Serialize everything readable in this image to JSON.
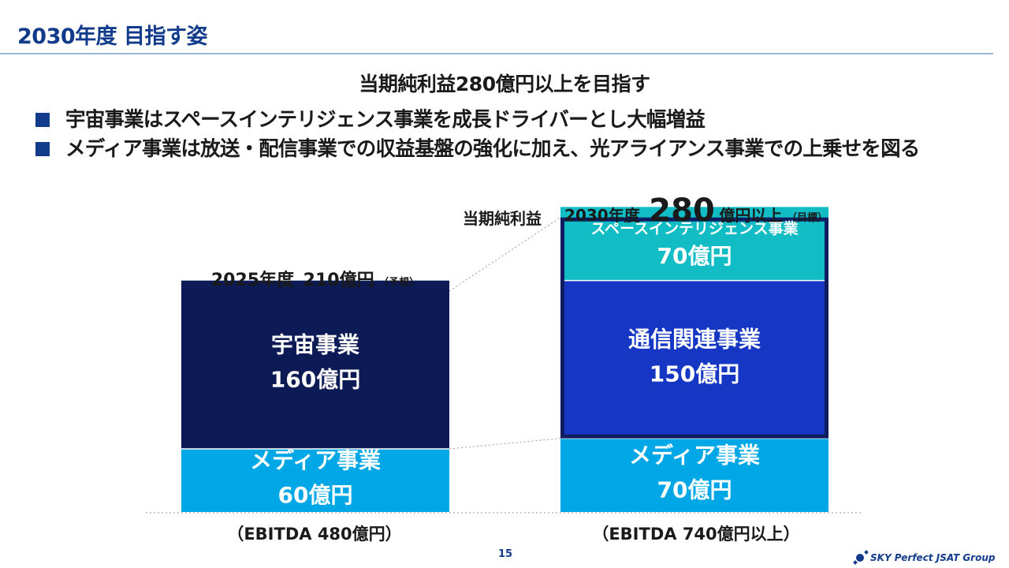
{
  "page": {
    "title": "2030年度 目指す姿",
    "headline": "当期純利益280億円以上を目指す",
    "bullets": [
      "宇宙事業はスペースインテリジェンス事業を成長ドライバーとし大幅増益",
      "メディア事業は放送・配信事業での収益基盤の強化に加え、光アライアンス事業での上乗せを図る"
    ],
    "page_number": "15",
    "logo_text": "SKY Perfect JSAT Group"
  },
  "colors": {
    "title": "#123b8c",
    "bullet": "#123b8c",
    "space_2025": "#0c1a56",
    "media": "#00a7e6",
    "intelligence": "#12bcc4",
    "communications": "#1537c4",
    "target_frame": "#0d1d60"
  },
  "chart_data": {
    "type": "bar",
    "stacked": true,
    "y_axis_label": "当期純利益",
    "unit": "億円",
    "categories": [
      "2025年度",
      "2030年度"
    ],
    "category_labels": [
      {
        "year": "2025年度",
        "amount": "210億円",
        "note": "（予想）"
      },
      {
        "year": "2030年度",
        "amount": "280",
        "amount_suffix": "億円以上",
        "note": "（目標）"
      }
    ],
    "footnotes": [
      "（EBITDA 480億円）",
      "（EBITDA 740億円以上）"
    ],
    "totals": [
      210,
      280
    ],
    "segments": [
      {
        "label": "メディア事業",
        "value_label": "60億円",
        "value": 60,
        "category": 0,
        "color": "#00a7e6"
      },
      {
        "label": "宇宙事業",
        "value_label": "160億円",
        "value": 160,
        "category": 0,
        "color": "#0c1a56"
      },
      {
        "label": "メディア事業",
        "value_label": "70億円",
        "value": 70,
        "category": 1,
        "color": "#00a7e6"
      },
      {
        "label": "通信関連事業",
        "value_label": "150億円",
        "value": 150,
        "category": 1,
        "color": "#1537c4"
      },
      {
        "label": "スペースインテリジェンス事業",
        "value_label": "70億円",
        "value": 70,
        "category": 1,
        "color": "#12bcc4"
      }
    ]
  }
}
